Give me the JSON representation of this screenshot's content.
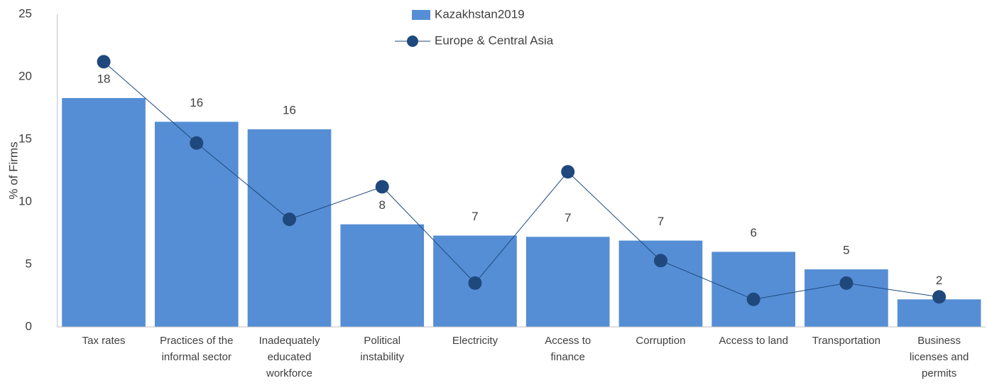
{
  "chart_data": {
    "type": "bar_line",
    "ylabel": "% of Firms",
    "categories": [
      "Tax rates",
      "Practices of the informal sector",
      "Inadequately educated workforce",
      "Political instability",
      "Electricity",
      "Access to finance",
      "Corruption",
      "Access to land",
      "Transportation",
      "Business licenses and permits"
    ],
    "series": [
      {
        "name": "Kazakhstan2019",
        "type": "bar",
        "color": "#558ed5",
        "values": [
          18.3,
          16.4,
          15.8,
          8.2,
          7.3,
          7.2,
          6.9,
          6.0,
          4.6,
          2.2
        ],
        "value_labels": [
          "18",
          "16",
          "16",
          "8",
          "7",
          "7",
          "7",
          "6",
          "5",
          "2"
        ]
      },
      {
        "name": "Europe & Central Asia",
        "type": "line",
        "color": "#1f497d",
        "values": [
          21.2,
          14.7,
          8.6,
          11.2,
          3.5,
          12.4,
          5.3,
          2.2,
          3.5,
          2.4
        ]
      }
    ],
    "ylim": [
      0,
      25
    ],
    "yticks": [
      0,
      5,
      10,
      15,
      20,
      25
    ],
    "grid": false
  }
}
